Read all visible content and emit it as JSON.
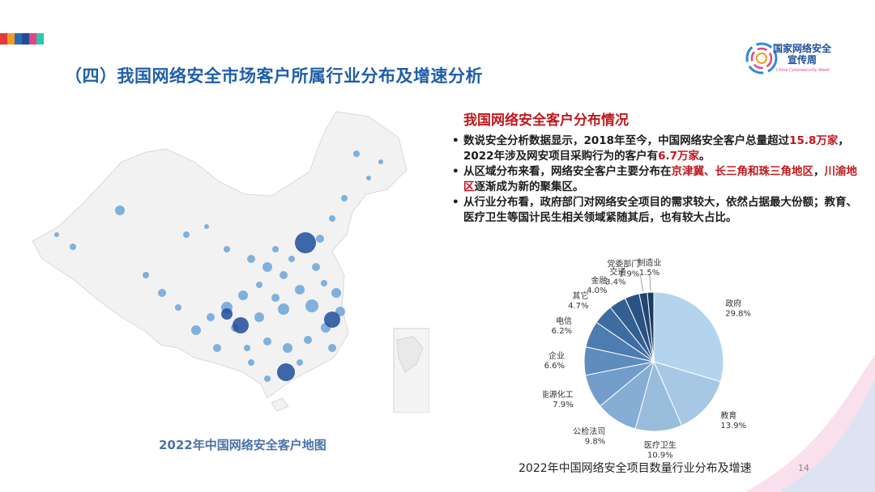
{
  "header": {
    "title": "（四）我国网络安全市场客户所属行业分布及增速分析",
    "deco_colors": [
      "#e13a3a",
      "#f29c1f",
      "#2b6cb8",
      "#1f4e9c",
      "#e2467f",
      "#2ec4b6"
    ]
  },
  "logo": {
    "line1": "国家网络安全",
    "line2": "宣传周",
    "line3": "China Cybersecurity Week"
  },
  "map": {
    "caption": "2022年中国网络安全客户地图"
  },
  "info": {
    "section_title": "我国网络安全客户分布情况",
    "bullet_char": "•",
    "bullets": [
      {
        "p1": "数说安全分析数据显示，2018年至今，中国网络安全客户总量超过",
        "h1": "15.8万家",
        "p2": "，2022年涉及网安项目采购行为的客户有",
        "h2": "6.7万家",
        "p3": "。"
      },
      {
        "p1": "从区域分布来看，网络安全客户主要分布在",
        "h1": "京津冀、长三角和珠三角地区",
        "p2": "，",
        "h2": "川渝地区",
        "p3": "逐渐成为新的聚集区。"
      },
      {
        "text": "从行业分布看，政府部门对网络安全项目的需求较大，依然占据最大份额；教育、医疗卫生等国计民生相关领域紧随其后，也有较大占比。"
      }
    ]
  },
  "chart_data": {
    "type": "pie",
    "title": "2022年中国网络安全项目数量行业分布及增速",
    "slices": [
      {
        "label": "政府",
        "value": 29.8,
        "display": "29.8%",
        "color": "#b3d4ec"
      },
      {
        "label": "教育",
        "value": 13.9,
        "display": "13.9%",
        "color": "#a6c8e4"
      },
      {
        "label": "医疗卫生",
        "value": 10.9,
        "display": "10.9%",
        "color": "#98bcdc"
      },
      {
        "label": "公检法司",
        "value": 9.8,
        "display": "9.8%",
        "color": "#86add3"
      },
      {
        "label": "能源化工",
        "value": 7.9,
        "display": "7.9%",
        "color": "#729dca"
      },
      {
        "label": "企业",
        "value": 6.6,
        "display": "6.6%",
        "color": "#5e8cbd"
      },
      {
        "label": "电信",
        "value": 6.2,
        "display": "6.2%",
        "color": "#4d7cb0"
      },
      {
        "label": "其它",
        "value": 4.7,
        "display": "4.7%",
        "color": "#3f6da2"
      },
      {
        "label": "金融",
        "value": 4.0,
        "display": "4.0%",
        "color": "#335f93"
      },
      {
        "label": "交通",
        "value": 3.4,
        "display": "3.4%",
        "color": "#2a5282"
      },
      {
        "label": "党委部门",
        "value": 1.9,
        "display": "1.9%",
        "color": "#224673"
      },
      {
        "label": "制造业",
        "value": 1.5,
        "display": "1.5%",
        "color": "#1c3b63"
      }
    ]
  },
  "footer": {
    "page_number": "14"
  }
}
